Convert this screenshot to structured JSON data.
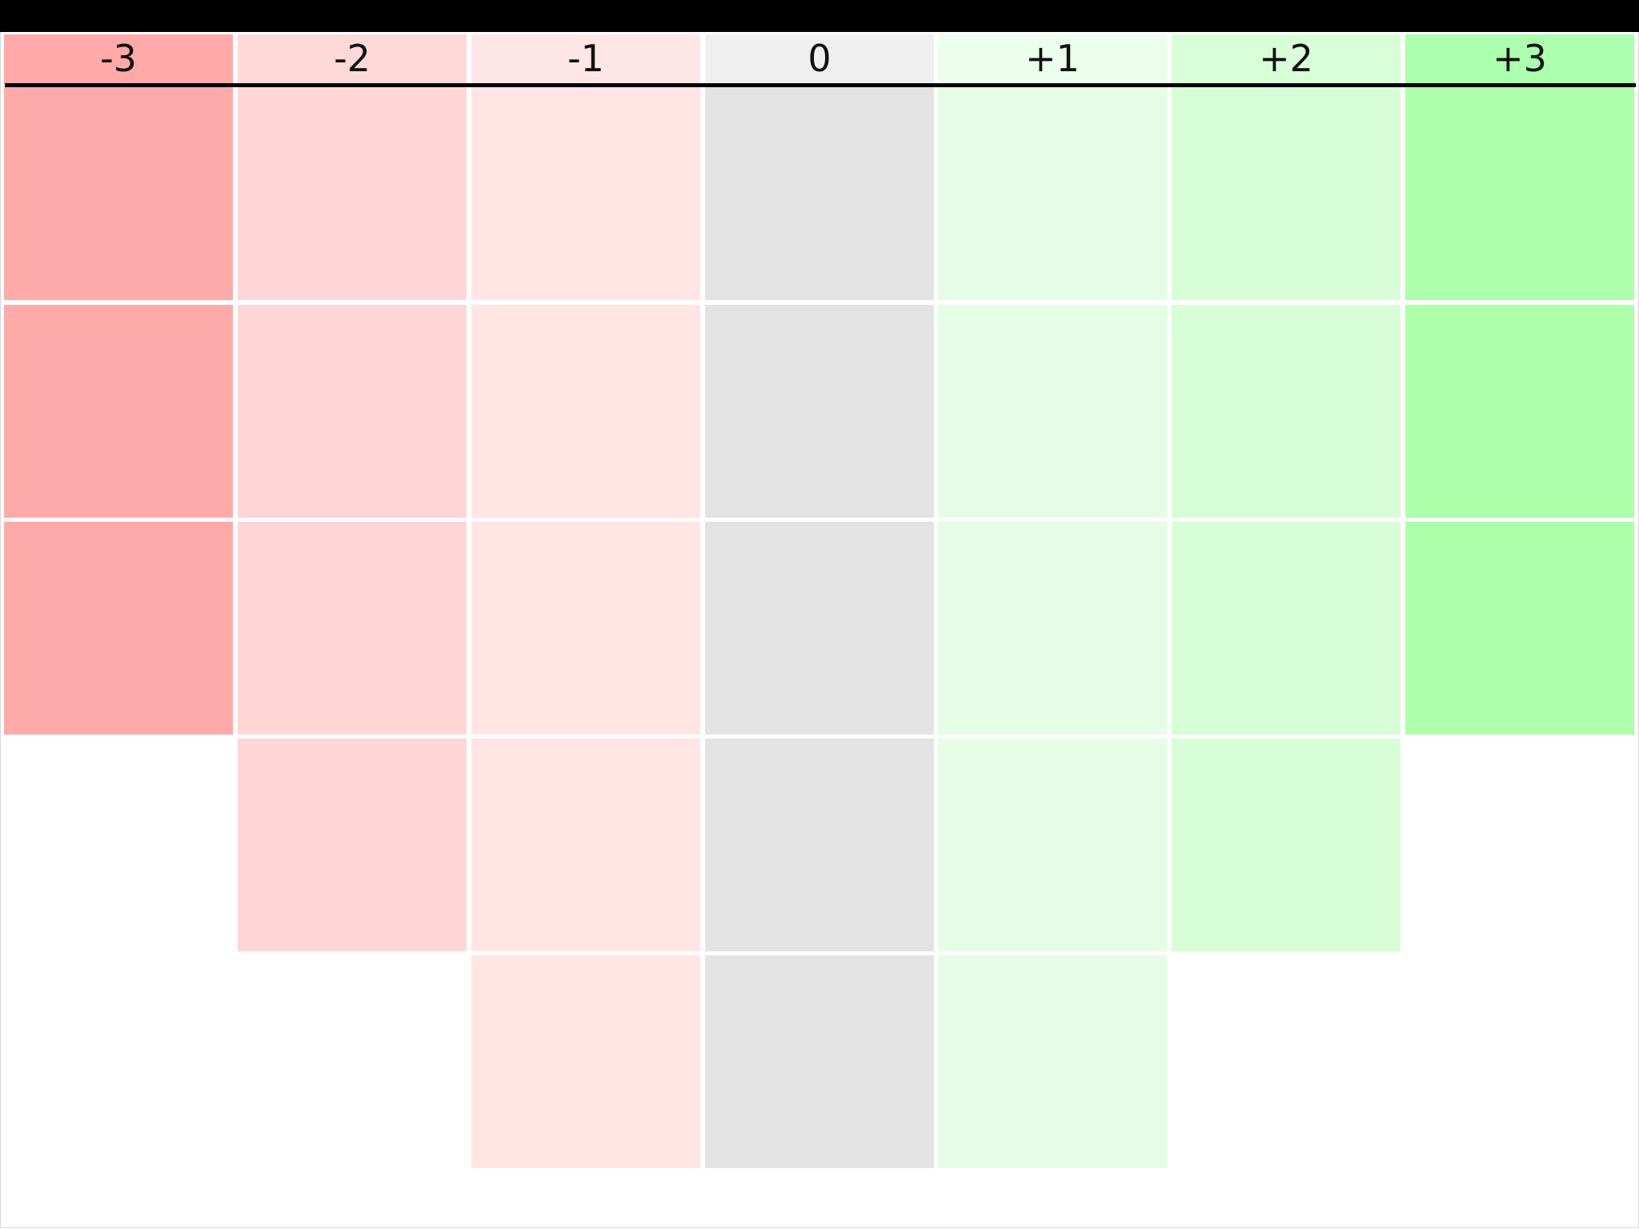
{
  "scale": {
    "columns": [
      {
        "label": "-3",
        "header_color": "#ffa9a9",
        "cell_color": "#ffaaaa",
        "card_count": 3
      },
      {
        "label": "-2",
        "header_color": "#ffd8d8",
        "cell_color": "#ffd6d6",
        "card_count": 4
      },
      {
        "label": "-1",
        "header_color": "#ffe6e6",
        "cell_color": "#ffe5e4",
        "card_count": 5
      },
      {
        "label": "0",
        "header_color": "#efefef",
        "cell_color": "#e3e3e3",
        "card_count": 5
      },
      {
        "label": "+1",
        "header_color": "#ecffec",
        "cell_color": "#e5fde5",
        "card_count": 5
      },
      {
        "label": "+2",
        "header_color": "#d9ffd9",
        "cell_color": "#d8fed8",
        "card_count": 4
      },
      {
        "label": "+3",
        "header_color": "#acffac",
        "cell_color": "#aeffaa",
        "card_count": 3
      }
    ]
  }
}
